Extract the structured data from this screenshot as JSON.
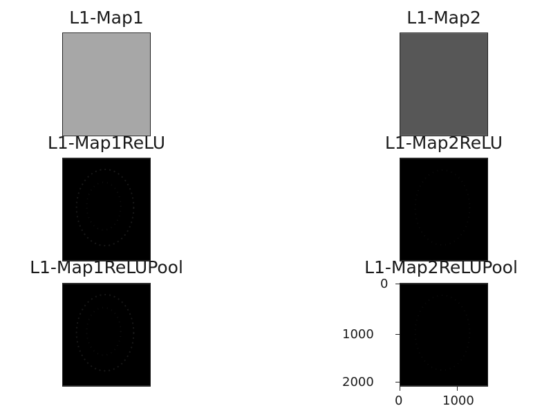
{
  "panels": [
    {
      "title": "L1-Map1",
      "fill": "#a7a7a7"
    },
    {
      "title": "L1-Map2",
      "fill": "#575757"
    },
    {
      "title": "L1-Map1ReLU",
      "fill": "#000000"
    },
    {
      "title": "L1-Map2ReLU",
      "fill": "#000000"
    },
    {
      "title": "L1-Map1ReLUPool",
      "fill": "#000000"
    },
    {
      "title": "L1-Map2ReLUPool",
      "fill": "#000000"
    }
  ],
  "axes": {
    "y_ticks": [
      "0",
      "1000",
      "2000"
    ],
    "x_ticks": [
      "0",
      "1000"
    ]
  },
  "chart_data": {
    "type": "heatmap",
    "panels": [
      "L1-Map1",
      "L1-Map2",
      "L1-Map1ReLU",
      "L1-Map2ReLU",
      "L1-Map1ReLUPool",
      "L1-Map2ReLUPool"
    ],
    "grid": false,
    "y_ticks": [
      0,
      1000,
      2000
    ],
    "x_ticks": [
      0,
      1000
    ]
  }
}
